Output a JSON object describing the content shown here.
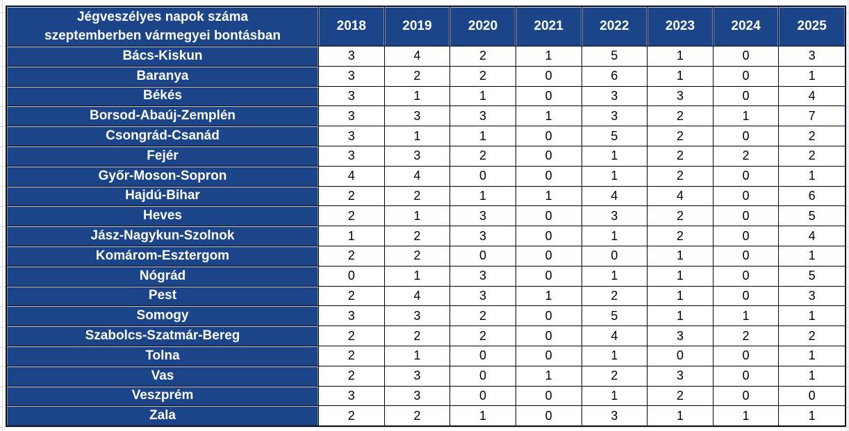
{
  "chart_data": {
    "type": "table",
    "title": "Jégveszélyes napok száma szeptemberben vármegyei bontásban",
    "title_lines": [
      "Jégveszélyes napok száma",
      "szeptemberben vármegyei bontásban"
    ],
    "columns": [
      "2018",
      "2019",
      "2020",
      "2021",
      "2022",
      "2023",
      "2024",
      "2025"
    ],
    "rows": [
      {
        "county": "Bács-Kiskun",
        "values": [
          3,
          4,
          2,
          1,
          5,
          1,
          0,
          3
        ]
      },
      {
        "county": "Baranya",
        "values": [
          3,
          2,
          2,
          0,
          6,
          1,
          0,
          1
        ]
      },
      {
        "county": "Békés",
        "values": [
          3,
          1,
          1,
          0,
          3,
          3,
          0,
          4
        ]
      },
      {
        "county": "Borsod-Abaúj-Zemplén",
        "values": [
          3,
          3,
          3,
          1,
          3,
          2,
          1,
          7
        ]
      },
      {
        "county": "Csongrád-Csanád",
        "values": [
          3,
          1,
          1,
          0,
          5,
          2,
          0,
          2
        ]
      },
      {
        "county": "Fejér",
        "values": [
          3,
          3,
          2,
          0,
          1,
          2,
          2,
          2
        ]
      },
      {
        "county": "Győr-Moson-Sopron",
        "values": [
          4,
          4,
          0,
          0,
          1,
          2,
          0,
          1
        ]
      },
      {
        "county": "Hajdú-Bihar",
        "values": [
          2,
          2,
          1,
          1,
          4,
          4,
          0,
          6
        ]
      },
      {
        "county": "Heves",
        "values": [
          2,
          1,
          3,
          0,
          3,
          2,
          0,
          5
        ]
      },
      {
        "county": "Jász-Nagykun-Szolnok",
        "values": [
          1,
          2,
          3,
          0,
          1,
          2,
          0,
          4
        ]
      },
      {
        "county": "Komárom-Esztergom",
        "values": [
          2,
          2,
          0,
          0,
          0,
          1,
          0,
          1
        ]
      },
      {
        "county": "Nógrád",
        "values": [
          0,
          1,
          3,
          0,
          1,
          1,
          0,
          5
        ]
      },
      {
        "county": "Pest",
        "values": [
          2,
          4,
          3,
          1,
          2,
          1,
          0,
          3
        ]
      },
      {
        "county": "Somogy",
        "values": [
          3,
          3,
          2,
          0,
          5,
          1,
          1,
          1
        ]
      },
      {
        "county": "Szabolcs-Szatmár-Bereg",
        "values": [
          2,
          2,
          2,
          0,
          4,
          3,
          2,
          2
        ]
      },
      {
        "county": "Tolna",
        "values": [
          2,
          1,
          0,
          0,
          1,
          0,
          0,
          1
        ]
      },
      {
        "county": "Vas",
        "values": [
          2,
          3,
          0,
          1,
          2,
          3,
          0,
          1
        ]
      },
      {
        "county": "Veszprém",
        "values": [
          3,
          3,
          0,
          0,
          1,
          2,
          0,
          0
        ]
      },
      {
        "county": "Zala",
        "values": [
          2,
          2,
          1,
          0,
          3,
          1,
          1,
          1
        ]
      }
    ],
    "layout": {
      "legend": "none",
      "grid": "table-borders",
      "header_position": "top-and-left"
    },
    "colors": {
      "header_bg": "#1b4489",
      "header_text": "#ffffff",
      "body_bg": "#ffffff",
      "body_text": "#000000",
      "border": "#000000",
      "sheet_gridline": "#d8d8d8"
    }
  }
}
